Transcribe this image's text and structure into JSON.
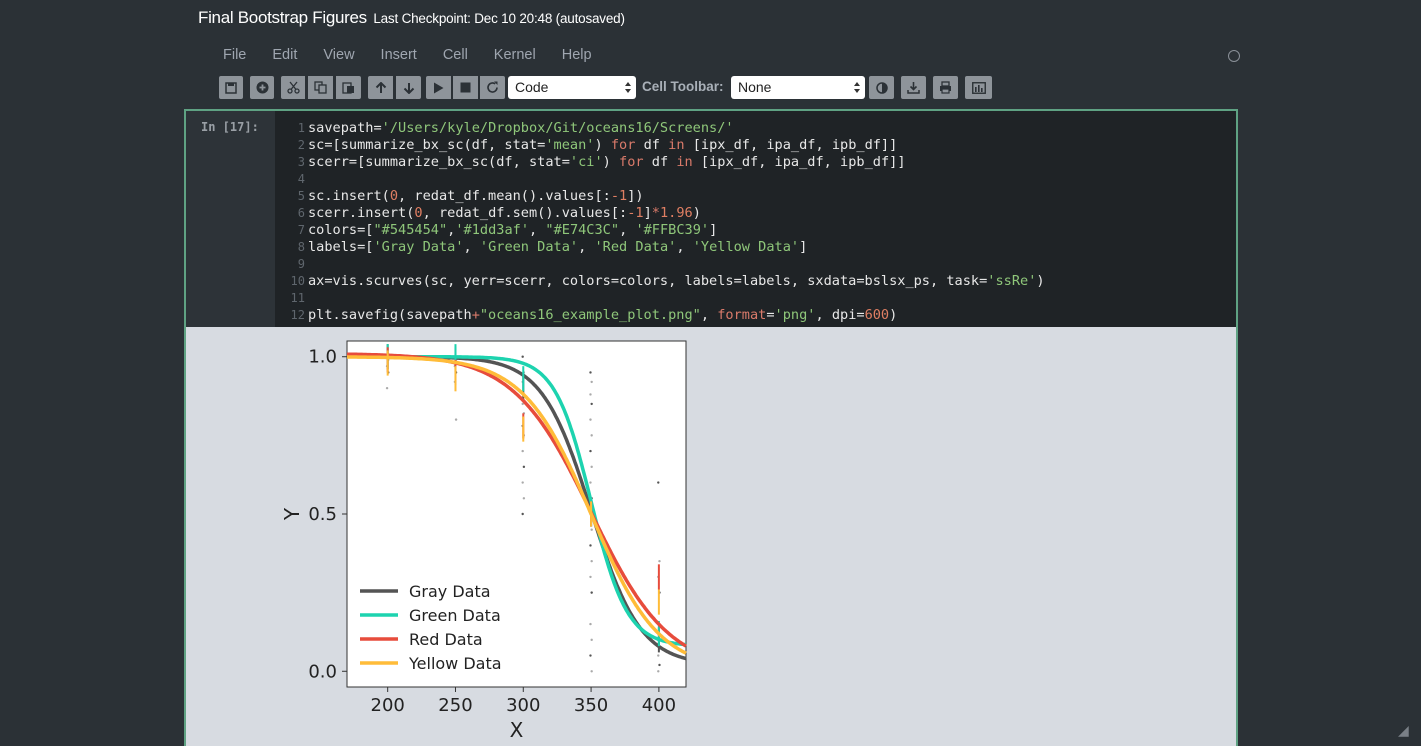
{
  "notebook": {
    "name": "Final Bootstrap Figures",
    "checkpoint": "Last Checkpoint: Dec 10 20:48 (autosaved)"
  },
  "menu": [
    "File",
    "Edit",
    "View",
    "Insert",
    "Cell",
    "Kernel",
    "Help"
  ],
  "toolbar": {
    "cell_type": "Code",
    "cell_toolbar_label": "Cell Toolbar:",
    "cell_toolbar_value": "None"
  },
  "cell": {
    "prompt": "In [17]:",
    "line_numbers": [
      "1",
      "2",
      "3",
      "4",
      "5",
      "6",
      "7",
      "8",
      "9",
      "10",
      "11",
      "12"
    ]
  },
  "colors": {
    "gray": "#545454",
    "green": "#1dd3af",
    "red": "#E74C3C",
    "yellow": "#FFBC39",
    "cell_border": "#5fa283"
  },
  "chart_data": {
    "type": "line",
    "xlabel": "X",
    "ylabel": "Y",
    "xlim": [
      170,
      420
    ],
    "ylim": [
      -0.05,
      1.05
    ],
    "xticks": [
      "200",
      "250",
      "300",
      "350",
      "400"
    ],
    "yticks": [
      "0.0",
      "0.5",
      "1.0"
    ],
    "legend_position": "bottom-left",
    "x": [
      200,
      250,
      300,
      350,
      400
    ],
    "series": [
      {
        "name": "Gray Data",
        "color": "#545454",
        "values": [
          1.0,
          0.99,
          0.9,
          0.5,
          0.1
        ]
      },
      {
        "name": "Green Data",
        "color": "#1dd3af",
        "values": [
          1.0,
          1.0,
          0.93,
          0.5,
          0.12
        ]
      },
      {
        "name": "Red Data",
        "color": "#E74C3C",
        "values": [
          0.99,
          0.95,
          0.78,
          0.5,
          0.3
        ]
      },
      {
        "name": "Yellow Data",
        "color": "#FFBC39",
        "values": [
          0.98,
          0.93,
          0.77,
          0.5,
          0.22
        ]
      }
    ]
  }
}
